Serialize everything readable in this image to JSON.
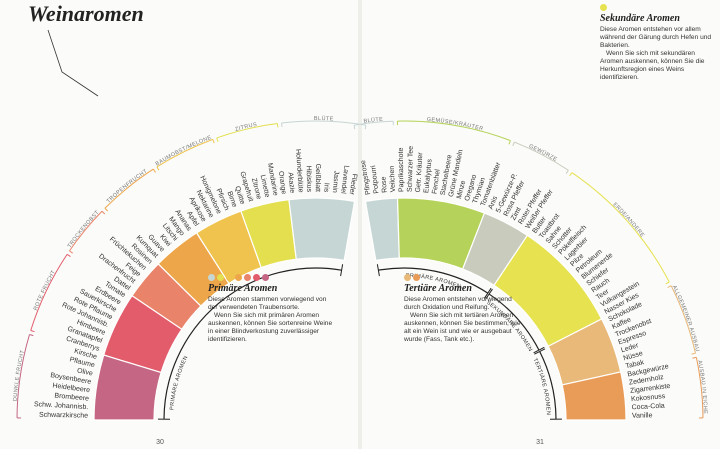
{
  "title": "Weinaromen",
  "pages": [
    {
      "number": "30",
      "stages": [
        {
          "label": "PRIMÄRE AROMEN",
          "legend": {
            "title": "Primäre Aromen",
            "paragraphs": [
              "Diese Aromen stammen vorwiegend von der verwendeten Traubensorte.",
              "Wenn Sie sich mit primären Aromen auskennen, können Sie sortenreine Weine in einer Blindverkostung zuverlässiger identifizieren."
            ]
          },
          "groups": [
            {
              "name": "BLÜTE",
              "color": "#c6d6d4",
              "items": [
                "Flieder",
                "Lavendel",
                "Jasmin",
                "Iris",
                "Geißblatt",
                "Hibiskus",
                "Holunderblüte",
                "Akazie"
              ]
            },
            {
              "name": "ZITRUS",
              "color": "#e3df4f",
              "items": [
                "Orange",
                "Mandarine",
                "Limette",
                "Zitrone",
                "Grapefruit",
                "Quitte"
              ]
            },
            {
              "name": "BAUMOBST/MELONE",
              "color": "#efc34d",
              "items": [
                "Birne",
                "Pfirsich",
                "Honigmelone",
                "Nektarine",
                "Aprikose",
                "Apfel"
              ]
            },
            {
              "name": "TROPENFRUCHT",
              "color": "#eea64a",
              "items": [
                "Ananas",
                "Mango",
                "Litschi",
                "Kiwi",
                "Guave",
                "Kumquat"
              ]
            },
            {
              "name": "TROCKENOBST",
              "color": "#e9836a",
              "items": [
                "Rosinen",
                "Früchtekuchen",
                "Feige",
                "Drachenfrucht",
                "Dattel"
              ]
            },
            {
              "name": "ROTE FRUCHT",
              "color": "#e35c6c",
              "items": [
                "Tomate",
                "Erdbeere",
                "Sauerkirsche",
                "Rote Pflaume",
                "Rote Johannisb.",
                "Himbeere",
                "Granatapfel",
                "Cranberrys"
              ]
            },
            {
              "name": "DUNKLE FRUCHT",
              "color": "#c46684",
              "items": [
                "Kirsche",
                "Pflaume",
                "Olive",
                "Boysenbeere",
                "Heidelbeere",
                "Brombeere",
                "Schw. Johannisb.",
                "Schwarzkirsche"
              ]
            }
          ]
        }
      ]
    },
    {
      "number": "31",
      "stages": [
        {
          "label": "PRIMÄRE AROMEN",
          "groups": [
            {
              "name": "BLÜTE",
              "color": "#c6d6d4",
              "items": [
                "Pfingstrose",
                "Potpourri",
                "Rose",
                "Veilchen"
              ]
            },
            {
              "name": "GEMÜSE/KRÄUTER",
              "color": "#b5d35a",
              "items": [
                "Paprikaschote",
                "Schwarzer Tee",
                "Getr. Kräuter",
                "Eukalyptus",
                "Fenchel",
                "Stachelbeere",
                "Grüne Mandeln",
                "Minze",
                "Oregano",
                "Thymian",
                "Tomatenblätter"
              ]
            },
            {
              "name": "GEWÜRZE",
              "color": "#c9cbbd",
              "items": [
                "Anis",
                "5-Gewürze-P.",
                "Rosa Pfeffer",
                "Zimt",
                "Roter Pfeffer",
                "Weißer Pfeffer"
              ]
            }
          ]
        },
        {
          "label": "SEKUNDÄRE AROMEN",
          "legend": {
            "title": "Sekundäre Aromen",
            "paragraphs": [
              "Diese Aromen entstehen vor allem während der Gärung durch Hefen und Bakterien.",
              "Wenn Sie sich mit sekundären Aromen auskennen, können Sie die Herkunftsregion eines Weins identifizieren."
            ]
          },
          "groups": [
            {
              "name": "ERDE/ANDERE",
              "color": "#e7e24f",
              "items": [
                "Butter",
                "Toastbrot",
                "Sahne",
                "Schotter",
                "Pökelfleisch",
                "Lagerbier",
                "Pilze",
                "Petroleum",
                "Blumenerde",
                "Schiefer",
                "Rauch",
                "Teer",
                "Vulkangestein",
                "Nasser Kies"
              ]
            }
          ]
        },
        {
          "label": "TERTIÄRE AROMEN",
          "legend": {
            "title": "Tertiäre Aromen",
            "paragraphs": [
              "Diese Aromen entstehen vorwiegend durch Oxidation und Reifung.",
              "Wenn Sie sich mit tertiären Aromen auskennen, können Sie bestimmen, wie alt ein Wein ist und wie er ausgebaut wurde (Fass, Tank etc.)."
            ]
          },
          "groups": [
            {
              "name": "ALLGEMEINER AUSBAU",
              "color": "#e8b978",
              "items": [
                "Schokolade",
                "Kaffee",
                "Trockenobst",
                "Espresso",
                "Leder",
                "Nüsse",
                "Tabak"
              ]
            },
            {
              "name": "AUSBAU IN EICHE",
              "color": "#e99b58",
              "items": [
                "Backgewürze",
                "Zedernholz",
                "Zigarrenkiste",
                "Kokosnuss",
                "Coca-Cola",
                "Vanille"
              ]
            }
          ]
        }
      ]
    }
  ]
}
